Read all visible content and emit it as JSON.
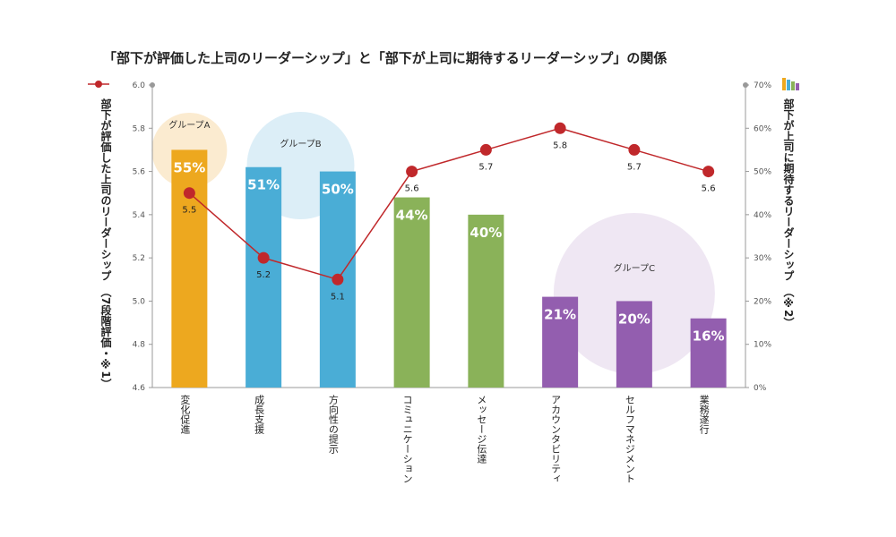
{
  "title": "「部下が評価した上司のリーダーシップ」と「部下が上司に期待するリーダーシップ」の関係",
  "chart_data": {
    "type": "bar",
    "categories": [
      "変化促進",
      "成長支援",
      "方向性の提示",
      "コミュニケーション",
      "メッセージ伝達",
      "アカウンタビリティ",
      "セルフマネジメント",
      "業務遂行"
    ],
    "series": [
      {
        "name": "部下が上司に期待するリーダーシップ",
        "type": "bar",
        "axis": "right",
        "values": [
          55,
          51,
          50,
          44,
          40,
          21,
          20,
          16
        ],
        "labels": [
          "55%",
          "51%",
          "50%",
          "44%",
          "40%",
          "21%",
          "20%",
          "16%"
        ],
        "colors": [
          "#EDA81F",
          "#4AADD6",
          "#4AADD6",
          "#8AB259",
          "#8AB259",
          "#935EAF",
          "#935EAF",
          "#935EAF"
        ]
      },
      {
        "name": "部下が評価した上司のリーダーシップ",
        "type": "line",
        "axis": "left",
        "values": [
          5.5,
          5.2,
          5.1,
          5.6,
          5.7,
          5.8,
          5.7,
          5.6
        ],
        "labels": [
          "5.5",
          "5.2",
          "5.1",
          "5.6",
          "5.7",
          "5.8",
          "5.7",
          "5.6"
        ],
        "color": "#C0282B"
      }
    ],
    "y_left": {
      "label": "部下が評価した上司のリーダーシップ　（7段階評価・※1）",
      "range": [
        4.6,
        6.0
      ],
      "ticks": [
        "4.6",
        "4.8",
        "5.0",
        "5.2",
        "5.4",
        "5.6",
        "5.8",
        "6.0"
      ]
    },
    "y_right": {
      "label": "部下が上司に期待するリーダーシップ　（※2）",
      "range": [
        0,
        70
      ],
      "ticks": [
        "0%",
        "10%",
        "20%",
        "30%",
        "40%",
        "50%",
        "60%",
        "70%"
      ]
    },
    "groups": [
      {
        "label": "グループA",
        "color": "#FBEBD0",
        "members": [
          0
        ]
      },
      {
        "label": "グループB",
        "color": "#DCEEF7",
        "members": [
          1,
          2
        ]
      },
      {
        "label": "グループC",
        "color": "#EFE7F3",
        "members": [
          5,
          6,
          7
        ]
      }
    ]
  }
}
